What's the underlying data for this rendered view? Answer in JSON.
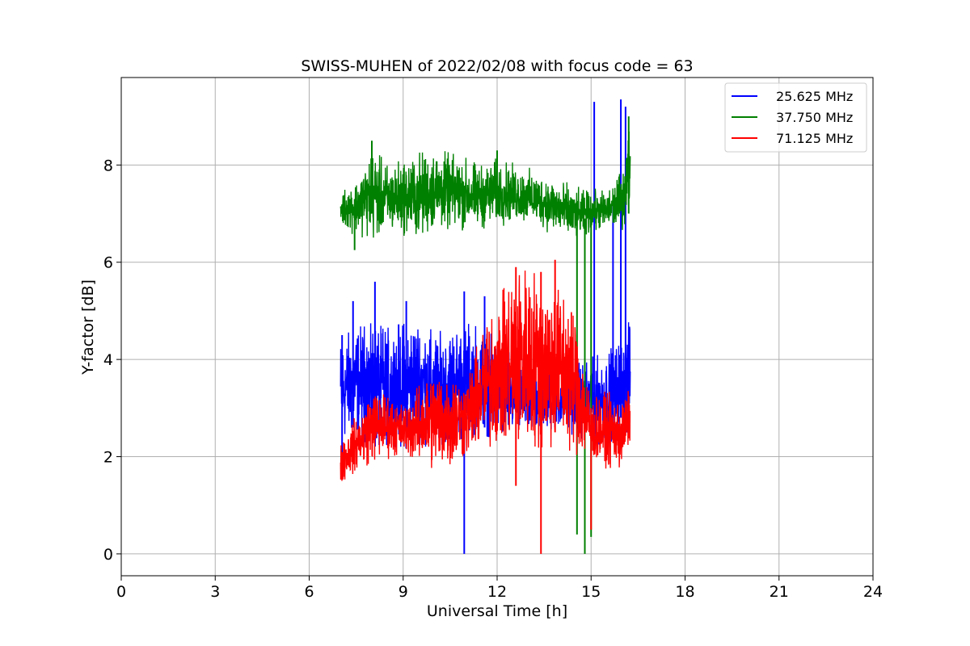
{
  "chart_data": {
    "type": "line",
    "title": "SWISS-MUHEN of 2022/02/08 with focus code = 63",
    "xlabel": "Universal Time [h]",
    "ylabel": "Y-factor [dB]",
    "xlim": [
      0,
      24
    ],
    "ylim": [
      -0.45,
      9.8
    ],
    "xticks": [
      0,
      3,
      6,
      9,
      12,
      15,
      18,
      21,
      24
    ],
    "yticks": [
      0,
      2,
      4,
      6,
      8
    ],
    "grid": true,
    "legend_position": "top-right",
    "colors": {
      "series_0": "#0000ff",
      "series_1": "#008000",
      "series_2": "#ff0000",
      "grid": "#b0b0b0",
      "frame": "#000000"
    },
    "series": [
      {
        "name": "25.625 MHz",
        "color": "#0000ff",
        "envelope": {
          "x": [
            7.0,
            7.5,
            8.0,
            8.5,
            9.0,
            9.5,
            10.0,
            10.5,
            11.0,
            11.5,
            12.0,
            12.5,
            13.0,
            13.5,
            14.0,
            14.5,
            15.0,
            15.5,
            16.0,
            16.25
          ],
          "lo": [
            2.4,
            2.6,
            2.2,
            2.4,
            2.3,
            2.4,
            2.3,
            2.5,
            2.5,
            2.6,
            2.5,
            2.5,
            2.5,
            2.6,
            2.6,
            2.6,
            2.4,
            2.4,
            2.6,
            2.6
          ],
          "hi": [
            4.3,
            4.5,
            4.6,
            4.5,
            4.6,
            4.7,
            4.4,
            4.5,
            4.6,
            4.5,
            4.3,
            4.0,
            3.9,
            3.9,
            3.8,
            3.8,
            3.9,
            4.0,
            4.3,
            4.7
          ]
        },
        "spikes": [
          [
            7.05,
            1.9,
            4.5
          ],
          [
            7.4,
            2.6,
            5.2
          ],
          [
            8.1,
            2.5,
            5.6
          ],
          [
            9.1,
            2.6,
            5.2
          ],
          [
            10.95,
            0.0,
            5.4
          ],
          [
            11.6,
            2.6,
            5.3
          ],
          [
            15.1,
            2.4,
            9.3
          ],
          [
            15.95,
            2.8,
            9.35
          ],
          [
            16.1,
            2.7,
            9.2
          ],
          [
            15.7,
            2.6,
            7.2
          ]
        ]
      },
      {
        "name": "37.750 MHz",
        "color": "#008000",
        "envelope": {
          "x": [
            7.0,
            7.5,
            8.0,
            8.5,
            9.0,
            9.5,
            10.0,
            10.5,
            11.0,
            11.5,
            12.0,
            12.5,
            13.0,
            13.5,
            14.0,
            14.5,
            15.0,
            15.5,
            16.0,
            16.25
          ],
          "lo": [
            6.8,
            6.7,
            6.6,
            6.7,
            6.7,
            6.6,
            6.8,
            6.8,
            6.8,
            6.8,
            6.9,
            6.9,
            6.9,
            6.8,
            6.6,
            6.5,
            6.7,
            6.7,
            6.8,
            7.2
          ],
          "hi": [
            7.4,
            7.6,
            8.2,
            7.9,
            8.0,
            8.1,
            8.2,
            8.1,
            8.0,
            7.9,
            8.0,
            7.9,
            7.8,
            7.7,
            7.6,
            7.4,
            7.4,
            7.4,
            7.8,
            8.8
          ]
        },
        "spikes": [
          [
            7.45,
            6.25,
            7.3
          ],
          [
            8.0,
            7.0,
            8.5
          ],
          [
            12.0,
            7.0,
            8.3
          ],
          [
            14.55,
            0.4,
            7.2
          ],
          [
            14.8,
            0.0,
            6.9
          ],
          [
            15.0,
            0.35,
            7.1
          ],
          [
            16.2,
            7.0,
            9.0
          ]
        ]
      },
      {
        "name": "71.125 MHz",
        "color": "#ff0000",
        "envelope": {
          "x": [
            7.0,
            7.5,
            8.0,
            8.5,
            9.0,
            9.5,
            10.0,
            10.5,
            11.0,
            11.5,
            12.0,
            12.5,
            13.0,
            13.5,
            14.0,
            14.5,
            15.0,
            15.5,
            16.0,
            16.25
          ],
          "lo": [
            1.5,
            1.8,
            2.0,
            2.1,
            2.1,
            2.0,
            1.9,
            1.9,
            2.1,
            2.3,
            2.4,
            2.3,
            2.4,
            2.3,
            2.4,
            2.2,
            2.0,
            1.9,
            1.8,
            2.4
          ],
          "hi": [
            2.3,
            2.7,
            3.3,
            3.2,
            3.0,
            3.3,
            3.7,
            3.6,
            3.5,
            4.4,
            5.1,
            5.6,
            5.7,
            5.5,
            5.3,
            4.9,
            3.1,
            3.2,
            3.1,
            3.3
          ]
        },
        "spikes": [
          [
            12.6,
            1.4,
            5.9
          ],
          [
            13.4,
            0.0,
            5.8
          ],
          [
            13.85,
            2.5,
            6.05
          ],
          [
            15.0,
            0.5,
            3.0
          ]
        ]
      }
    ]
  }
}
